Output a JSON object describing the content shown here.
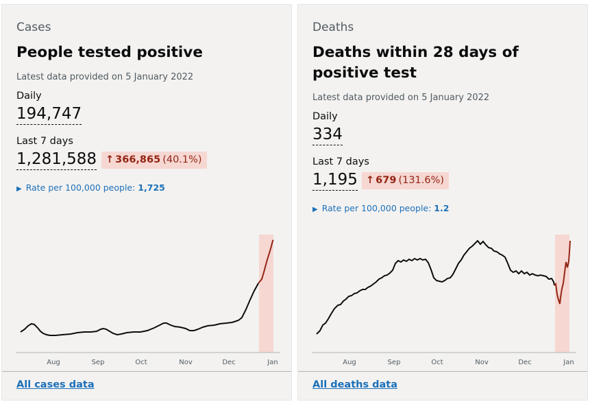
{
  "cases": {
    "caption": "Cases",
    "title": "People tested positive",
    "updated": "Latest data provided on 5 January 2022",
    "daily_label": "Daily",
    "daily_value": "194,747",
    "week_label": "Last 7 days",
    "week_value": "1,281,588",
    "change_arrow": "↑",
    "change_value": "366,865",
    "change_percent": "(40.1%)",
    "rate_label": "Rate per 100,000 people: ",
    "rate_value": "1,725",
    "link": "All cases data"
  },
  "deaths": {
    "caption": "Deaths",
    "title": "Deaths within 28 days of positive test",
    "updated": "Latest data provided on 5 January 2022",
    "daily_label": "Daily",
    "daily_value": "334",
    "week_label": "Last 7 days",
    "week_value": "1,195",
    "change_arrow": "↑",
    "change_value": "679",
    "change_percent": "(131.6%)",
    "rate_label": "Rate per 100,000 people: ",
    "rate_value": "1.2",
    "link": "All deaths data"
  },
  "colors": {
    "accent_link": "#1d70b8",
    "line": "#0b0c0c",
    "highlight_line": "#942514",
    "highlight_fill": "#f6d7d2"
  },
  "month_ticks": [
    "Aug",
    "Sep",
    "Oct",
    "Nov",
    "Dec",
    "Jan"
  ]
}
